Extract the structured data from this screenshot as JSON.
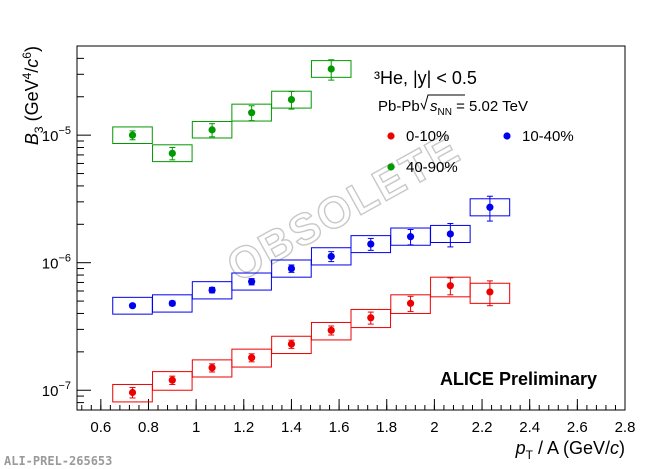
{
  "chart_data": {
    "type": "scatter",
    "title": "",
    "xlabel": "p_T / A (GeV/c)",
    "ylabel": "B_3 (GeV^4/c^6)",
    "xlim": [
      0.5,
      2.8
    ],
    "ylim": [
      7e-08,
      5e-05
    ],
    "yscale": "log",
    "x_ticks": [
      0.6,
      0.8,
      1,
      1.2,
      1.4,
      1.6,
      1.8,
      2,
      2.2,
      2.4,
      2.6,
      2.8
    ],
    "x_tick_labels": [
      "0.6",
      "0.8",
      "1",
      "1.2",
      "1.4",
      "1.6",
      "1.8",
      "2",
      "2.2",
      "2.4",
      "2.6",
      "2.8"
    ],
    "y_major_ticks": [
      1e-07,
      1e-06,
      1e-05
    ],
    "y_tick_labels": [
      {
        "base": "10",
        "exp": "−7"
      },
      {
        "base": "10",
        "exp": "−6"
      },
      {
        "base": "10",
        "exp": "−5"
      }
    ],
    "series": [
      {
        "name": "0-10%",
        "color": "#ee0000",
        "x": [
          0.733,
          0.9,
          1.067,
          1.233,
          1.4,
          1.567,
          1.733,
          1.9,
          2.067,
          2.233
        ],
        "y": [
          9.6e-08,
          1.2e-07,
          1.5e-07,
          1.8e-07,
          2.3e-07,
          2.95e-07,
          3.7e-07,
          4.8e-07,
          6.6e-07,
          5.9e-07
        ],
        "stat_err": [
          9e-09,
          9e-09,
          1.1e-08,
          1.3e-08,
          1.7e-08,
          2.4e-08,
          4e-08,
          6.5e-08,
          1e-07,
          1.3e-07
        ],
        "sys_low": [
          8.1e-08,
          1e-07,
          1.27e-07,
          1.52e-07,
          1.94e-07,
          2.48e-07,
          3.1e-07,
          4e-07,
          5.4e-07,
          4.8e-07
        ],
        "sys_high": [
          1.11e-07,
          1.4e-07,
          1.73e-07,
          2.1e-07,
          2.65e-07,
          3.4e-07,
          4.3e-07,
          5.6e-07,
          7.7e-07,
          6.9e-07
        ]
      },
      {
        "name": "10-40%",
        "color": "#0000ee",
        "x": [
          0.733,
          0.9,
          1.067,
          1.233,
          1.4,
          1.567,
          1.733,
          1.9,
          2.067,
          2.233
        ],
        "y": [
          4.6e-07,
          4.8e-07,
          6.1e-07,
          7.1e-07,
          9e-07,
          1.12e-06,
          1.4e-06,
          1.6e-06,
          1.68e-06,
          2.72e-06
        ],
        "stat_err": [
          1.5e-08,
          2e-08,
          3e-08,
          4e-08,
          6e-08,
          1e-07,
          1.5e-07,
          2.2e-07,
          3.5e-07,
          6e-07
        ],
        "sys_low": [
          3.95e-07,
          4.1e-07,
          5.2e-07,
          6.1e-07,
          7.7e-07,
          9.6e-07,
          1.2e-06,
          1.37e-06,
          1.44e-06,
          2.33e-06
        ],
        "sys_high": [
          5.35e-07,
          5.6e-07,
          7.1e-07,
          8.3e-07,
          1.05e-06,
          1.31e-06,
          1.63e-06,
          1.87e-06,
          1.96e-06,
          3.17e-06
        ]
      },
      {
        "name": "40-90%",
        "color": "#009900",
        "x": [
          0.733,
          0.9,
          1.067,
          1.233,
          1.4,
          1.567
        ],
        "y": [
          1e-05,
          7.2e-06,
          1.1e-05,
          1.5e-05,
          1.9e-05,
          3.3e-05
        ],
        "stat_err": [
          8e-07,
          8e-07,
          1.3e-06,
          2e-06,
          3e-06,
          6e-06
        ],
        "sys_low": [
          8.6e-06,
          6.2e-06,
          9.5e-06,
          1.29e-05,
          1.63e-05,
          2.84e-05
        ],
        "sys_high": [
          1.16e-05,
          8.4e-06,
          1.28e-05,
          1.75e-05,
          2.21e-05,
          3.84e-05
        ]
      }
    ],
    "bin_half_width": 0.083,
    "legend": {
      "placement": "upper-right",
      "entries": [
        "0-10%",
        "10-40%",
        "40-90%"
      ]
    },
    "annotations": {
      "nucleus": "³He, |y| < 0.5",
      "system_prefix": "Pb-Pb",
      "system_sqrt": "s",
      "system_sub": "NN",
      "system_suffix": " = 5.02 TeV",
      "experiment": "ALICE Preliminary",
      "watermark": "OBSOLETE",
      "figure_id": "ALI-PREL-265653"
    },
    "axis_labels": {
      "x_main": "p",
      "x_sub": "T",
      "x_rest": " / A (GeV/",
      "x_c": "c",
      "x_close": ")",
      "y_main": "B",
      "y_sub": "3",
      "y_rest": " (GeV",
      "y_sup1": "4",
      "y_slash": "/",
      "y_c": "c",
      "y_sup2": "6",
      "y_close": ")"
    }
  }
}
